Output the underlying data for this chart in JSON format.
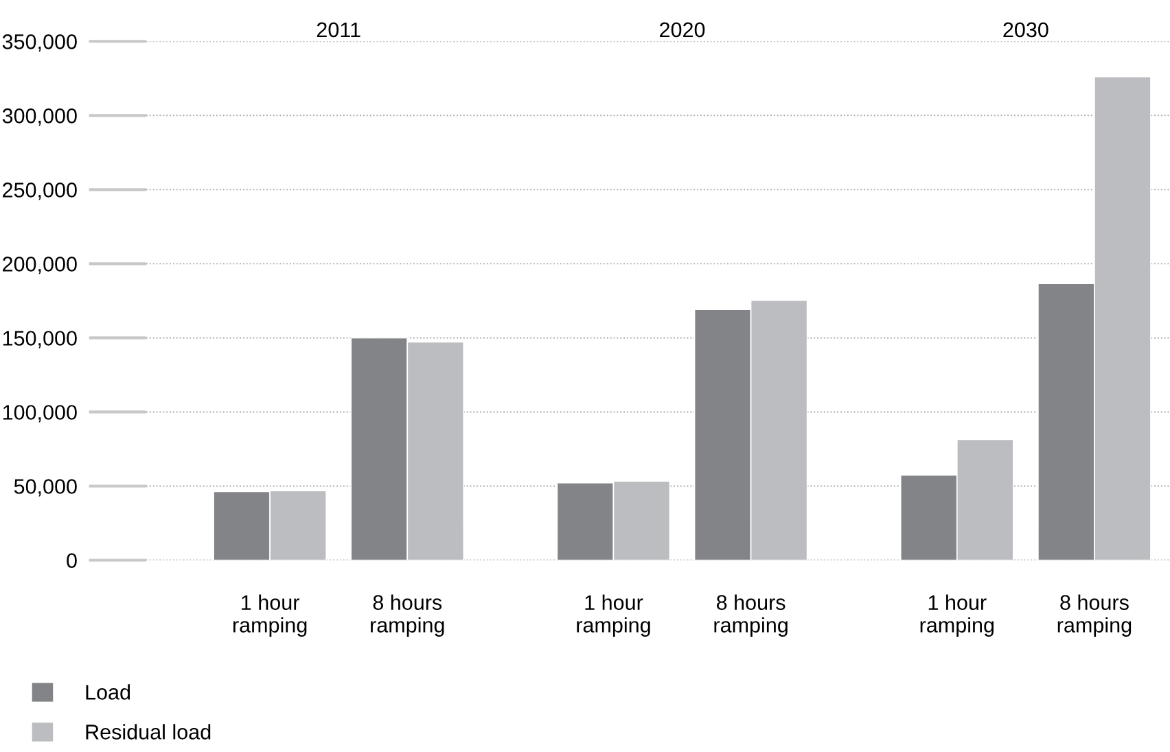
{
  "chart_data": {
    "type": "bar",
    "categories": [
      "1 hour\nramping",
      "8 hours\nramping",
      "1 hour\nramping",
      "8 hours\nramping",
      "1 hour\nramping",
      "8 hours\nramping"
    ],
    "series": [
      {
        "name": "Load",
        "color": "#838488",
        "values": [
          46300,
          150000,
          52200,
          169100,
          57400,
          186700
        ]
      },
      {
        "name": "Residual load",
        "color": "#bcbdc1",
        "values": [
          46900,
          147200,
          53400,
          175300,
          81500,
          326200
        ]
      }
    ],
    "annotations": [
      "2011",
      "2020",
      "2030"
    ],
    "ylim": [
      0,
      350000
    ],
    "yticks": [
      {
        "value": 0,
        "label": "0"
      },
      {
        "value": 50000,
        "label": "50,000"
      },
      {
        "value": 100000,
        "label": "100,000"
      },
      {
        "value": 150000,
        "label": "150,000"
      },
      {
        "value": 200000,
        "label": "200,000"
      },
      {
        "value": 250000,
        "label": "250,000"
      },
      {
        "value": 300000,
        "label": "300,000"
      },
      {
        "value": 350000,
        "label": "350,000"
      }
    ],
    "grid": "y",
    "legend": "bottom left"
  }
}
